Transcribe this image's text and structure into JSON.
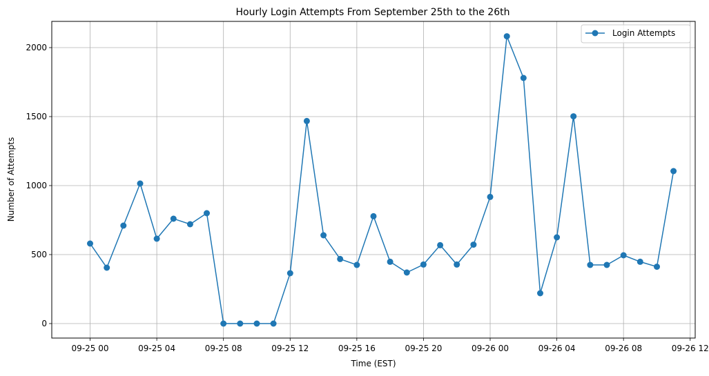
{
  "chart_data": {
    "type": "line",
    "title": "Hourly Login Attempts From September 25th to the 26th",
    "xlabel": "Time (EST)",
    "ylabel": "Number of Attempts",
    "x_unit": "hour",
    "x_start": "2024-09-25T00:00",
    "xlim": [
      "2024-09-24T21:42",
      "2024-09-26T12:18"
    ],
    "ylim": [
      -105,
      2190
    ],
    "x_ticks": [
      "09-25 00",
      "09-25 04",
      "09-25 08",
      "09-25 12",
      "09-25 16",
      "09-25 20",
      "09-26 00",
      "09-26 04",
      "09-26 08",
      "09-26 12"
    ],
    "y_ticks": [
      "0",
      "500",
      "1000",
      "1500",
      "2000"
    ],
    "grid": true,
    "legend_position": "top-right",
    "color": "#1f77b4",
    "series": [
      {
        "name": "Login Attempts",
        "x": [
          "2024-09-25T00:00",
          "2024-09-25T01:00",
          "2024-09-25T02:00",
          "2024-09-25T03:00",
          "2024-09-25T04:00",
          "2024-09-25T05:00",
          "2024-09-25T06:00",
          "2024-09-25T07:00",
          "2024-09-25T08:00",
          "2024-09-25T09:00",
          "2024-09-25T10:00",
          "2024-09-25T11:00",
          "2024-09-25T12:00",
          "2024-09-25T13:00",
          "2024-09-25T14:00",
          "2024-09-25T15:00",
          "2024-09-25T16:00",
          "2024-09-25T17:00",
          "2024-09-25T18:00",
          "2024-09-25T19:00",
          "2024-09-25T20:00",
          "2024-09-25T21:00",
          "2024-09-25T22:00",
          "2024-09-25T23:00",
          "2024-09-26T00:00",
          "2024-09-26T01:00",
          "2024-09-26T02:00",
          "2024-09-26T03:00",
          "2024-09-26T04:00",
          "2024-09-26T05:00",
          "2024-09-26T06:00",
          "2024-09-26T07:00",
          "2024-09-26T08:00",
          "2024-09-26T09:00",
          "2024-09-26T10:00",
          "2024-09-26T11:00"
        ],
        "values": [
          580,
          405,
          710,
          1015,
          615,
          760,
          720,
          800,
          0,
          0,
          0,
          0,
          365,
          1468,
          640,
          468,
          425,
          778,
          448,
          370,
          428,
          568,
          428,
          572,
          918,
          2082,
          1780,
          220,
          625,
          1502,
          425,
          425,
          495,
          448,
          412,
          1105
        ]
      }
    ]
  }
}
